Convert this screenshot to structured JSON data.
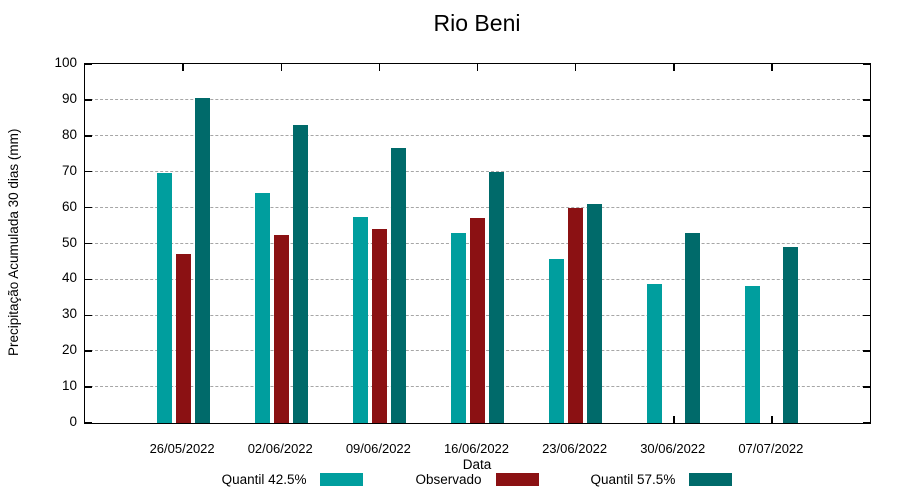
{
  "chart_data": {
    "type": "bar",
    "title": "Rio Beni",
    "xlabel": "Data",
    "ylabel": "Precipitação Acumulada 30 dias (mm)",
    "ylim": [
      0,
      100
    ],
    "ytick_step": 10,
    "yticks": [
      0,
      10,
      20,
      30,
      40,
      50,
      60,
      70,
      80,
      90,
      100
    ],
    "grid": true,
    "gridline_color": "#a6a6a6",
    "axis_color": "#000000",
    "legend_position": "bottom",
    "categories": [
      "26/05/2022",
      "02/06/2022",
      "09/06/2022",
      "16/06/2022",
      "23/06/2022",
      "30/06/2022",
      "07/07/2022"
    ],
    "series": [
      {
        "name": "Quantil 42.5%",
        "color": "#009E9E",
        "values": [
          69.7,
          64.1,
          57.5,
          53.0,
          45.6,
          38.6,
          38.3
        ]
      },
      {
        "name": "Observado",
        "color": "#8B1113",
        "values": [
          47.0,
          52.5,
          54.0,
          57.1,
          59.9,
          null,
          null
        ]
      },
      {
        "name": "Quantil 57.5%",
        "color": "#006A6A",
        "values": [
          90.5,
          83.0,
          76.5,
          70.0,
          61.0,
          53.0,
          49.1
        ]
      }
    ]
  }
}
